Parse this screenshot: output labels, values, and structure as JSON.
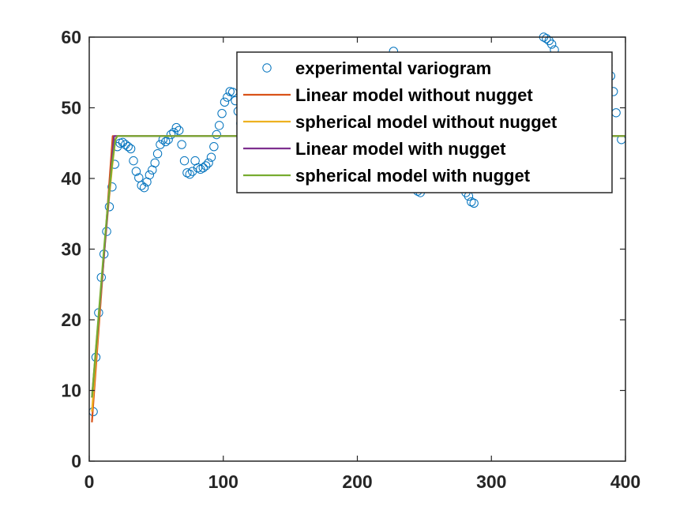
{
  "chart_data": {
    "type": "line",
    "title": "",
    "xlabel": "",
    "ylabel": "",
    "xlim": [
      0,
      400
    ],
    "ylim": [
      0,
      60
    ],
    "x_ticks": [
      0,
      100,
      200,
      300,
      400
    ],
    "y_ticks": [
      0,
      10,
      20,
      30,
      40,
      50,
      60
    ],
    "grid": false,
    "legend_position": "top-right",
    "series": [
      {
        "name": "experimental variogram",
        "kind": "scatter",
        "marker": "circle",
        "color": "#0072BD",
        "points": [
          [
            3,
            7
          ],
          [
            5,
            14.7
          ],
          [
            7,
            21
          ],
          [
            9,
            26
          ],
          [
            11,
            29.3
          ],
          [
            13,
            32.5
          ],
          [
            15,
            36
          ],
          [
            17,
            38.8
          ],
          [
            19,
            42
          ],
          [
            21,
            44.5
          ],
          [
            23,
            45
          ],
          [
            25,
            45.1
          ],
          [
            27,
            44.8
          ],
          [
            29,
            44.5
          ],
          [
            31,
            44.2
          ],
          [
            33,
            42.5
          ],
          [
            35,
            41
          ],
          [
            37,
            40.1
          ],
          [
            39,
            39
          ],
          [
            41,
            38.7
          ],
          [
            43,
            39.5
          ],
          [
            45,
            40.5
          ],
          [
            47,
            41.2
          ],
          [
            49,
            42.2
          ],
          [
            51,
            43.5
          ],
          [
            53,
            44.8
          ],
          [
            55,
            45.5
          ],
          [
            57,
            45.2
          ],
          [
            59,
            45.5
          ],
          [
            61,
            46.2
          ],
          [
            63,
            46.5
          ],
          [
            65,
            47.2
          ],
          [
            67,
            46.8
          ],
          [
            69,
            44.8
          ],
          [
            71,
            42.5
          ],
          [
            73,
            40.8
          ],
          [
            75,
            40.6
          ],
          [
            77,
            41
          ],
          [
            79,
            42.5
          ],
          [
            81,
            41.5
          ],
          [
            83,
            41.3
          ],
          [
            85,
            41.5
          ],
          [
            87,
            41.8
          ],
          [
            89,
            42.2
          ],
          [
            91,
            43
          ],
          [
            93,
            44.5
          ],
          [
            95,
            46.2
          ],
          [
            97,
            47.5
          ],
          [
            99,
            49.2
          ],
          [
            101,
            50.8
          ],
          [
            103,
            51.5
          ],
          [
            105,
            52.3
          ],
          [
            107,
            52.2
          ],
          [
            109,
            51
          ],
          [
            111,
            49.5
          ],
          [
            113,
            47.8
          ],
          [
            115,
            45.5
          ],
          [
            227,
            58
          ],
          [
            245,
            38.2
          ],
          [
            247,
            38
          ],
          [
            281,
            38
          ],
          [
            283,
            37.5
          ],
          [
            285,
            36.7
          ],
          [
            287,
            36.5
          ],
          [
            339,
            60
          ],
          [
            341,
            59.8
          ],
          [
            343,
            59.5
          ],
          [
            345,
            59
          ],
          [
            347,
            58.2
          ],
          [
            387,
            56
          ],
          [
            389,
            54.5
          ],
          [
            391,
            52.3
          ],
          [
            393,
            49.3
          ],
          [
            397,
            45.5
          ]
        ]
      },
      {
        "name": "Linear model without nugget",
        "kind": "line",
        "color": "#D95319",
        "points": [
          [
            2,
            5.5
          ],
          [
            17.5,
            46
          ],
          [
            400,
            46
          ]
        ]
      },
      {
        "name": "spherical model without nugget",
        "kind": "line",
        "color": "#EDB120",
        "points": [
          [
            2,
            7
          ],
          [
            5,
            14.5
          ],
          [
            8,
            22
          ],
          [
            11,
            29
          ],
          [
            14,
            35.5
          ],
          [
            17,
            41.5
          ],
          [
            19.5,
            45.5
          ],
          [
            21,
            46
          ],
          [
            400,
            46
          ]
        ]
      },
      {
        "name": "Linear model with nugget",
        "kind": "line",
        "color": "#7E2F8E",
        "points": [
          [
            2,
            9
          ],
          [
            18.5,
            46
          ],
          [
            400,
            46
          ]
        ]
      },
      {
        "name": "spherical model with nugget",
        "kind": "line",
        "color": "#77AC30",
        "points": [
          [
            2,
            9
          ],
          [
            5,
            16
          ],
          [
            8,
            23
          ],
          [
            11,
            30
          ],
          [
            14,
            36.5
          ],
          [
            17,
            42
          ],
          [
            19.5,
            45.5
          ],
          [
            21,
            46
          ],
          [
            400,
            46
          ]
        ]
      }
    ]
  }
}
